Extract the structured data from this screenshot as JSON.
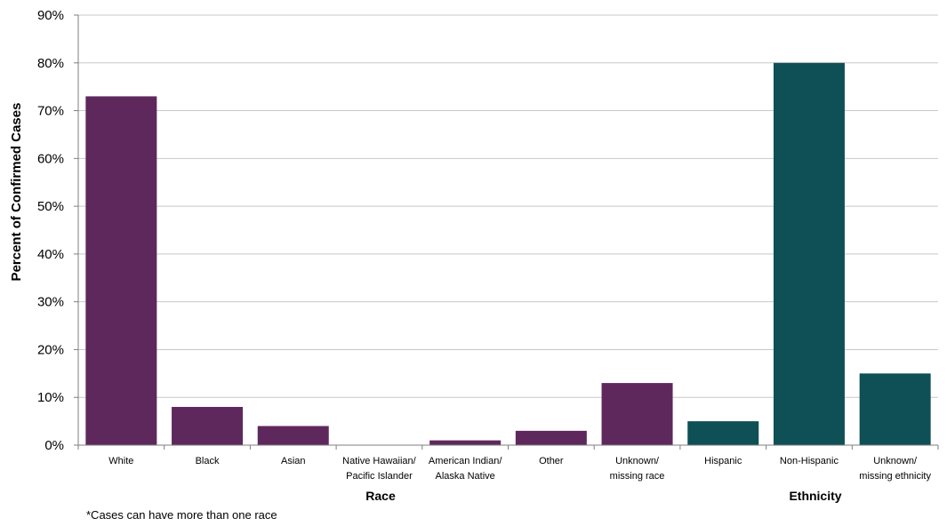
{
  "chart_data": {
    "type": "bar",
    "categories": [
      [
        "White"
      ],
      [
        "Black"
      ],
      [
        "Asian"
      ],
      [
        "Native Hawaiian/",
        "Pacific Islander"
      ],
      [
        "American Indian/",
        "Alaska Native"
      ],
      [
        "Other"
      ],
      [
        "Unknown/",
        "missing race"
      ],
      [
        "Hispanic"
      ],
      [
        "Non-Hispanic"
      ],
      [
        "Unknown/",
        "missing ethnicity"
      ]
    ],
    "values": [
      73,
      8,
      4,
      0,
      1,
      3,
      13,
      5,
      80,
      15
    ],
    "groups": [
      {
        "label": "Race",
        "start": 0,
        "end": 6,
        "color": "#5e285d"
      },
      {
        "label": "Ethnicity",
        "start": 7,
        "end": 9,
        "color": "#0e5055"
      }
    ],
    "ylabel": "Percent of Confirmed Cases",
    "ylim": [
      0,
      90
    ],
    "yticks": [
      "0%",
      "10%",
      "20%",
      "30%",
      "40%",
      "50%",
      "60%",
      "70%",
      "80%",
      "90%"
    ],
    "grid": true
  },
  "footnote": "*Cases can have more than one race"
}
